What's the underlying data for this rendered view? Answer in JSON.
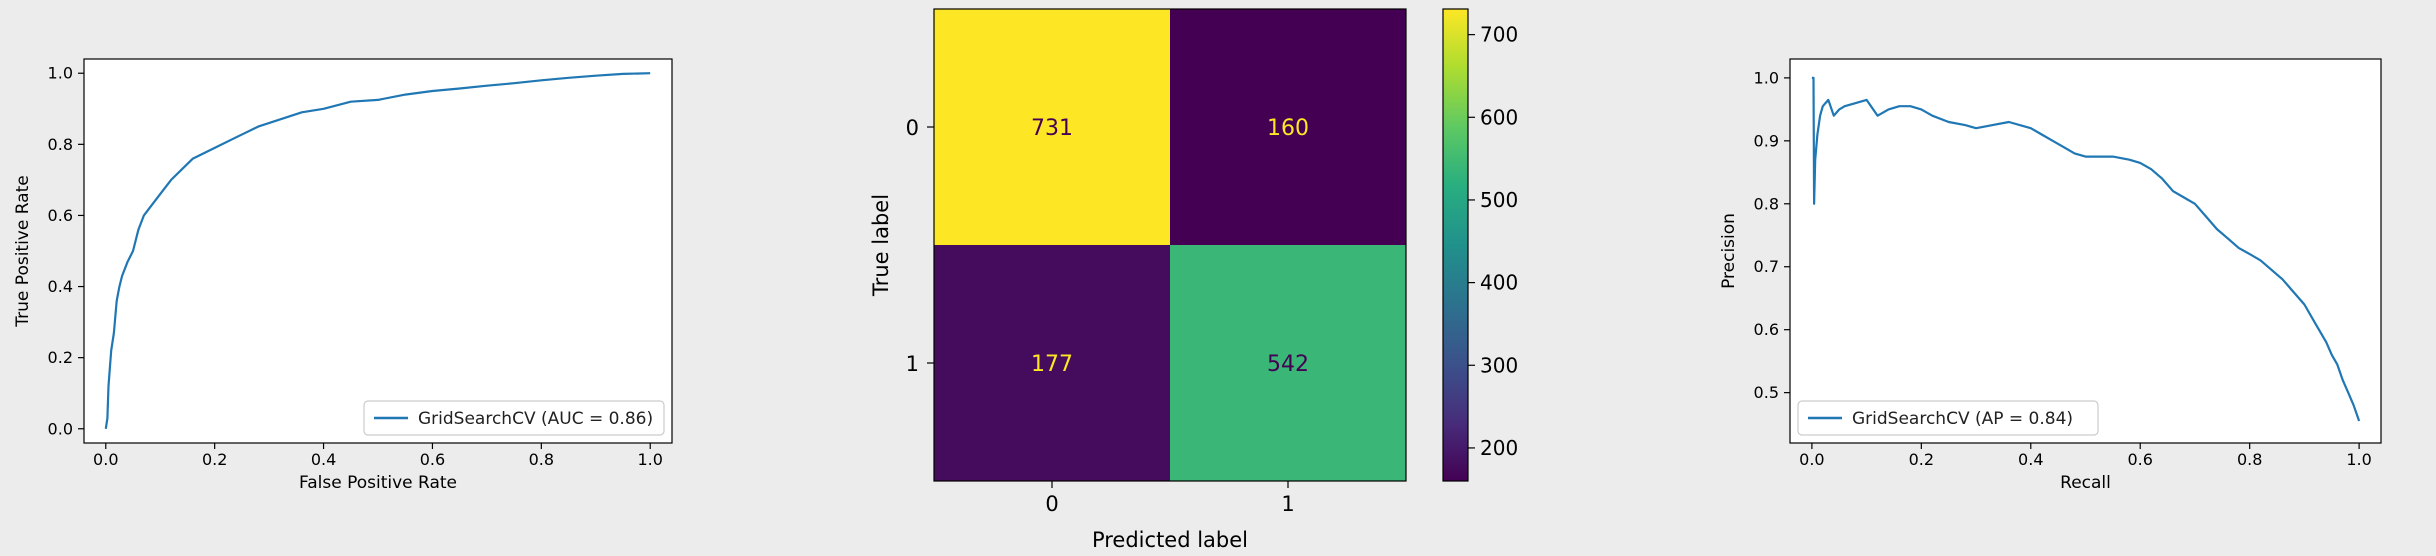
{
  "chart_data": [
    {
      "type": "line",
      "title": "",
      "xlabel": "False Positive Rate",
      "ylabel": "True Positive Rate",
      "xlim": [
        -0.04,
        1.04
      ],
      "ylim": [
        -0.04,
        1.04
      ],
      "xticks": [
        "0.0",
        "0.2",
        "0.4",
        "0.6",
        "0.8",
        "1.0"
      ],
      "yticks": [
        "0.0",
        "0.2",
        "0.4",
        "0.6",
        "0.8",
        "1.0"
      ],
      "legend_position": "lower-right",
      "series": [
        {
          "name": "GridSearchCV (AUC = 0.86)",
          "color": "#1f77b4",
          "x": [
            0.0,
            0.003,
            0.005,
            0.008,
            0.01,
            0.015,
            0.02,
            0.025,
            0.03,
            0.04,
            0.05,
            0.06,
            0.07,
            0.08,
            0.1,
            0.12,
            0.14,
            0.16,
            0.2,
            0.24,
            0.28,
            0.32,
            0.36,
            0.4,
            0.45,
            0.5,
            0.55,
            0.6,
            0.65,
            0.7,
            0.75,
            0.8,
            0.85,
            0.9,
            0.95,
            1.0
          ],
          "y": [
            0.0,
            0.03,
            0.12,
            0.18,
            0.22,
            0.27,
            0.36,
            0.4,
            0.43,
            0.47,
            0.5,
            0.56,
            0.6,
            0.62,
            0.66,
            0.7,
            0.73,
            0.76,
            0.79,
            0.82,
            0.85,
            0.87,
            0.89,
            0.9,
            0.92,
            0.925,
            0.94,
            0.95,
            0.957,
            0.965,
            0.972,
            0.98,
            0.987,
            0.993,
            0.998,
            1.0
          ]
        }
      ]
    },
    {
      "type": "heatmap",
      "title": "",
      "xlabel": "Predicted label",
      "ylabel": "True label",
      "row_labels": [
        "0",
        "1"
      ],
      "col_labels": [
        "0",
        "1"
      ],
      "values": [
        [
          731,
          160
        ],
        [
          177,
          542
        ]
      ],
      "value_labels": [
        [
          "731",
          "160"
        ],
        [
          "177",
          "542"
        ]
      ],
      "colormap": "viridis",
      "colorbar_ticks": [
        "200",
        "300",
        "400",
        "500",
        "600",
        "700"
      ]
    },
    {
      "type": "line",
      "title": "",
      "xlabel": "Recall",
      "ylabel": "Precision",
      "xlim": [
        -0.04,
        1.04
      ],
      "ylim": [
        0.42,
        1.03
      ],
      "xticks": [
        "0.0",
        "0.2",
        "0.4",
        "0.6",
        "0.8",
        "1.0"
      ],
      "yticks": [
        "0.5",
        "0.6",
        "0.7",
        "0.8",
        "0.9",
        "1.0"
      ],
      "legend_position": "lower-left",
      "series": [
        {
          "name": "GridSearchCV (AP = 0.84)",
          "color": "#1f77b4",
          "x": [
            0.0,
            0.003,
            0.004,
            0.006,
            0.01,
            0.015,
            0.02,
            0.03,
            0.04,
            0.05,
            0.06,
            0.08,
            0.1,
            0.12,
            0.14,
            0.16,
            0.18,
            0.2,
            0.22,
            0.25,
            0.28,
            0.3,
            0.33,
            0.36,
            0.4,
            0.42,
            0.44,
            0.46,
            0.48,
            0.5,
            0.52,
            0.55,
            0.58,
            0.6,
            0.62,
            0.64,
            0.66,
            0.68,
            0.7,
            0.72,
            0.74,
            0.76,
            0.78,
            0.8,
            0.82,
            0.84,
            0.86,
            0.88,
            0.9,
            0.92,
            0.94,
            0.95,
            0.96,
            0.97,
            0.98,
            0.99,
            1.0
          ],
          "y": [
            1.0,
            1.0,
            0.8,
            0.87,
            0.91,
            0.94,
            0.955,
            0.965,
            0.94,
            0.95,
            0.955,
            0.96,
            0.965,
            0.94,
            0.95,
            0.955,
            0.955,
            0.95,
            0.94,
            0.93,
            0.925,
            0.92,
            0.925,
            0.93,
            0.92,
            0.91,
            0.9,
            0.89,
            0.88,
            0.875,
            0.875,
            0.875,
            0.87,
            0.865,
            0.855,
            0.84,
            0.82,
            0.81,
            0.8,
            0.78,
            0.76,
            0.745,
            0.73,
            0.72,
            0.71,
            0.695,
            0.68,
            0.66,
            0.64,
            0.61,
            0.58,
            0.56,
            0.545,
            0.52,
            0.5,
            0.48,
            0.455
          ]
        }
      ]
    }
  ]
}
